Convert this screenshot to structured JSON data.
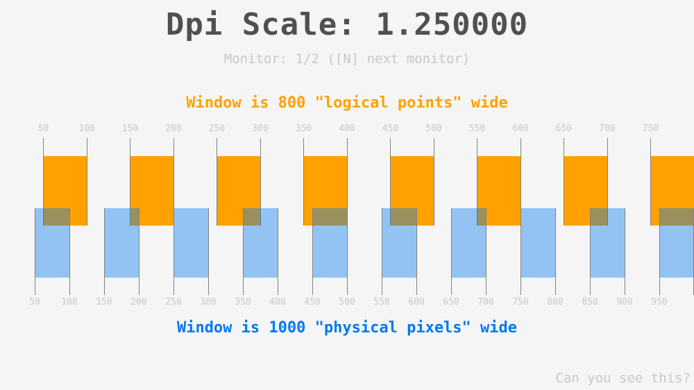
{
  "title": "Dpi Scale: 1.250000",
  "monitor_info": "Monitor: 1/2 ([N] next monitor)",
  "logical_caption": "Window is 800 \"logical points\" wide",
  "physical_caption": "Window is 1000 \"physical pixels\" wide",
  "footer": "Can you see this?",
  "dpi_scale": 1.25,
  "colors": {
    "logical": "#ffa100",
    "physical": "#0079f1",
    "text": "#505050",
    "muted": "#c8c8c8"
  },
  "logical_ticks": [
    "50",
    "100",
    "150",
    "200",
    "250",
    "300",
    "350",
    "400",
    "450",
    "500",
    "550",
    "600",
    "650",
    "700",
    "750"
  ],
  "physical_ticks": [
    "50",
    "100",
    "150",
    "200",
    "250",
    "300",
    "350",
    "400",
    "450",
    "500",
    "550",
    "600",
    "650",
    "700",
    "750",
    "800",
    "850",
    "900",
    "950"
  ]
}
